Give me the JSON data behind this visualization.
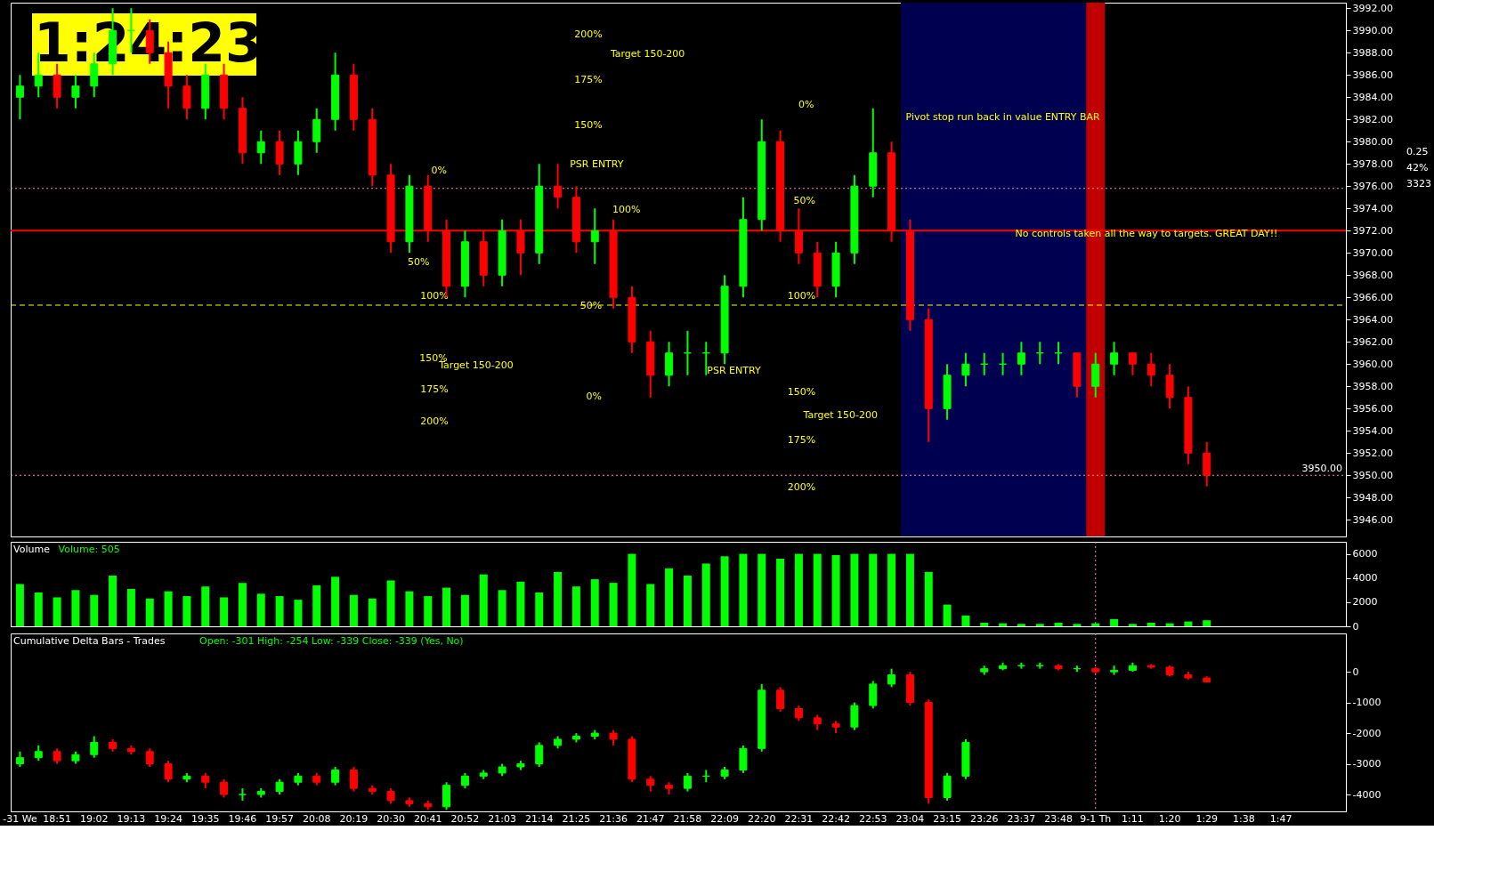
{
  "chart_data": [
    {
      "type": "candlestick",
      "tick_labels": "y",
      "grid": false,
      "categories": [
        "-31 We",
        null,
        "18:51",
        null,
        "19:02",
        null,
        "19:13",
        null,
        "19:24",
        null,
        "19:35",
        null,
        "19:46",
        null,
        "19:57",
        null,
        "20:08",
        null,
        "20:19",
        null,
        "20:30",
        null,
        "20:41",
        null,
        "20:52",
        null,
        "21:03",
        null,
        "21:14",
        null,
        "21:25",
        null,
        "21:36",
        null,
        "21:47",
        null,
        "21:58",
        null,
        "22:09",
        null,
        "22:20",
        null,
        "22:31",
        null,
        "22:42",
        null,
        "22:53",
        null,
        "23:04",
        null,
        "23:15",
        null,
        "23:26",
        null,
        "23:37",
        null,
        "23:48",
        null,
        "9-1 Th",
        null,
        "1:11",
        null,
        "1:20",
        null,
        "1:29",
        null,
        "1:38",
        null,
        "1:47",
        null,
        null,
        null
      ],
      "ohlc": [
        [
          3984,
          3986,
          3982,
          3985
        ],
        [
          3985,
          3988,
          3984,
          3986
        ],
        [
          3986,
          3987,
          3983,
          3984
        ],
        [
          3984,
          3986,
          3983,
          3985
        ],
        [
          3985,
          3988,
          3984,
          3987
        ],
        [
          3987,
          3992,
          3986,
          3990
        ],
        [
          3990,
          3992,
          3988,
          3990
        ],
        [
          3990,
          3991,
          3987,
          3988
        ],
        [
          3988,
          3989,
          3983,
          3985
        ],
        [
          3985,
          3986,
          3982,
          3983
        ],
        [
          3983,
          3987,
          3982,
          3986
        ],
        [
          3986,
          3987,
          3982,
          3983
        ],
        [
          3983,
          3984,
          3978,
          3979
        ],
        [
          3979,
          3981,
          3978,
          3980
        ],
        [
          3980,
          3981,
          3977,
          3978
        ],
        [
          3978,
          3981,
          3977,
          3980
        ],
        [
          3980,
          3983,
          3979,
          3982
        ],
        [
          3982,
          3988,
          3981,
          3986
        ],
        [
          3986,
          3987,
          3981,
          3982
        ],
        [
          3982,
          3983,
          3976,
          3977
        ],
        [
          3977,
          3978,
          3970,
          3971
        ],
        [
          3971,
          3977,
          3970,
          3976
        ],
        [
          3976,
          3977,
          3971,
          3972
        ],
        [
          3972,
          3973,
          3966,
          3967
        ],
        [
          3967,
          3972,
          3966,
          3971
        ],
        [
          3971,
          3972,
          3967,
          3968
        ],
        [
          3968,
          3973,
          3967,
          3972
        ],
        [
          3972,
          3973,
          3968,
          3970
        ],
        [
          3970,
          3978,
          3969,
          3976
        ],
        [
          3976,
          3978,
          3974,
          3975
        ],
        [
          3975,
          3976,
          3970,
          3971
        ],
        [
          3971,
          3974,
          3969,
          3972
        ],
        [
          3972,
          3973,
          3965,
          3966
        ],
        [
          3966,
          3967,
          3961,
          3962
        ],
        [
          3962,
          3963,
          3957,
          3959
        ],
        [
          3959,
          3962,
          3958,
          3961
        ],
        [
          3961,
          3963,
          3959,
          3961
        ],
        [
          3961,
          3962,
          3959,
          3961
        ],
        [
          3961,
          3968,
          3960,
          3967
        ],
        [
          3967,
          3975,
          3966,
          3973
        ],
        [
          3973,
          3982,
          3972,
          3980
        ],
        [
          3980,
          3981,
          3971,
          3972
        ],
        [
          3972,
          3974,
          3969,
          3970
        ],
        [
          3970,
          3971,
          3966,
          3967
        ],
        [
          3967,
          3971,
          3966,
          3970
        ],
        [
          3970,
          3977,
          3969,
          3976
        ],
        [
          3976,
          3983,
          3975,
          3979
        ],
        [
          3979,
          3980,
          3971,
          3972
        ],
        [
          3972,
          3973,
          3963,
          3964
        ],
        [
          3964,
          3965,
          3953,
          3956
        ],
        [
          3956,
          3960,
          3955,
          3959
        ],
        [
          3959,
          3961,
          3958,
          3960
        ],
        [
          3960,
          3961,
          3959,
          3960
        ],
        [
          3960,
          3961,
          3959,
          3960
        ],
        [
          3960,
          3962,
          3959,
          3961
        ],
        [
          3961,
          3962,
          3960,
          3961
        ],
        [
          3961,
          3962,
          3960,
          3961
        ],
        [
          3961,
          3961,
          3957,
          3958
        ],
        [
          3958,
          3961,
          3957,
          3960
        ],
        [
          3960,
          3962,
          3959,
          3961
        ],
        [
          3961,
          3961,
          3959,
          3960
        ],
        [
          3960,
          3961,
          3958,
          3959
        ],
        [
          3959,
          3960,
          3956,
          3957
        ],
        [
          3957,
          3958,
          3951,
          3952
        ],
        [
          3952,
          3953,
          3949,
          3950
        ],
        null,
        null,
        null,
        null,
        null,
        null,
        null
      ],
      "colors": [
        "#00ff00",
        "#00ff00",
        "#ff0000",
        "#00ff00",
        "#00ff00",
        "#00ff00",
        "#00ff00",
        "#ff0000",
        "#ff0000",
        "#ff0000",
        "#00ff00",
        "#ff0000",
        "#ff0000",
        "#00ff00",
        "#ff0000",
        "#00ff00",
        "#00ff00",
        "#00ff00",
        "#ff0000",
        "#ff0000",
        "#ff0000",
        "#00ff00",
        "#ff0000",
        "#ff0000",
        "#00ff00",
        "#ff0000",
        "#00ff00",
        "#ff0000",
        "#00ff00",
        "#ff0000",
        "#ff0000",
        "#00ff00",
        "#ff0000",
        "#ff0000",
        "#ff0000",
        "#00ff00",
        "#00ff00",
        "#00ff00",
        "#00ff00",
        "#00ff00",
        "#00ff00",
        "#ff0000",
        "#ff0000",
        "#ff0000",
        "#00ff00",
        "#00ff00",
        "#00ff00",
        "#ff0000",
        "#ff0000",
        "#ff0000",
        "#00ff00",
        "#00ff00",
        "#00ff00",
        "#00ff00",
        "#00ff00",
        "#00ff00",
        "#00ff00",
        "#ff0000",
        "#00ff00",
        "#00ff00",
        "#ff0000",
        "#ff0000",
        "#ff0000",
        "#ff0000",
        "#ff0000",
        null,
        null,
        null,
        null,
        null,
        null,
        null
      ],
      "ylim": [
        3944.5,
        3992.5
      ],
      "yticks": [
        {
          "value": 3946,
          "label": "3946.00"
        },
        {
          "value": 3948,
          "label": "3948.00"
        },
        {
          "value": 3950,
          "label": "3950.00"
        },
        {
          "value": 3952,
          "label": "3952.00"
        },
        {
          "value": 3954,
          "label": "3954.00"
        },
        {
          "value": 3956,
          "label": "3956.00"
        },
        {
          "value": 3958,
          "label": "3958.00"
        },
        {
          "value": 3960,
          "label": "3960.00"
        },
        {
          "value": 3962,
          "label": "3962.00"
        },
        {
          "value": 3964,
          "label": "3964.00"
        },
        {
          "value": 3966,
          "label": "3966.00"
        },
        {
          "value": 3968,
          "label": "3968.00"
        },
        {
          "value": 3970,
          "label": "3970.00"
        },
        {
          "value": 3972,
          "label": "3972.00"
        },
        {
          "value": 3974,
          "label": "3974.00"
        },
        {
          "value": 3976,
          "label": "3976.00"
        },
        {
          "value": 3978,
          "label": "3978.00"
        },
        {
          "value": 3980,
          "label": "3980.00"
        },
        {
          "value": 3982,
          "label": "3982.00"
        },
        {
          "value": 3984,
          "label": "3984.00"
        },
        {
          "value": 3986,
          "label": "3986.00"
        },
        {
          "value": 3988,
          "label": "3988.00"
        },
        {
          "value": 3990,
          "label": "3990.00"
        },
        {
          "value": 3992,
          "label": "3992.00"
        }
      ],
      "bands": [
        {
          "axis": "x",
          "from": "23:04",
          "to": "9-1 Th",
          "color": "#000050"
        },
        {
          "axis": "x",
          "from": "9-1 Th",
          "to": "9-1 Th",
          "color": "#c00000"
        }
      ],
      "ref_lines": [
        {
          "axis": "y",
          "value": 3975.8,
          "color": "#ff80c0",
          "line_style": "dotted"
        },
        {
          "axis": "y",
          "value": 3950.0,
          "label": "3950.00",
          "color": "#ff80c0",
          "line_style": "dotted"
        },
        {
          "axis": "y",
          "value": 3972.0,
          "color": "#ff0000",
          "line_style": "solid"
        },
        {
          "axis": "y",
          "value": 3965.3,
          "color": "#ffff00",
          "line_style": "dashed"
        }
      ],
      "annotations": [
        "1:24:23",
        "0.25",
        "42%",
        "3323",
        "200%",
        "Target 150-200",
        "175%",
        "150%",
        "0%",
        "50%",
        "100%",
        "150%",
        "Target 150-200",
        "175%",
        "200%",
        "PSR ENTRY",
        "100%",
        "50%",
        "0%",
        "PSR ENTRY",
        "0%",
        "50%",
        "100%",
        "150%",
        "Target 150-200",
        "175%",
        "200%",
        "Pivot stop run back in value ENTRY BAR",
        "No controls taken all the way to targets. GREAT DAY!!"
      ]
    },
    {
      "type": "bar",
      "title": "Volume",
      "subtitle": "Volume: 505",
      "tick_labels": "y",
      "grid": false,
      "color": "#00ff00",
      "categories": [
        "-31 We",
        null,
        "18:51",
        null,
        "19:02",
        null,
        "19:13",
        null,
        "19:24",
        null,
        "19:35",
        null,
        "19:46",
        null,
        "19:57",
        null,
        "20:08",
        null,
        "20:19",
        null,
        "20:30",
        null,
        "20:41",
        null,
        "20:52",
        null,
        "21:03",
        null,
        "21:14",
        null,
        "21:25",
        null,
        "21:36",
        null,
        "21:47",
        null,
        "21:58",
        null,
        "22:09",
        null,
        "22:20",
        null,
        "22:31",
        null,
        "22:42",
        null,
        "22:53",
        null,
        "23:04",
        null,
        "23:15",
        null,
        "23:26",
        null,
        "23:37",
        null,
        "23:48",
        null,
        "9-1 Th",
        null,
        "1:11",
        null,
        "1:20",
        null,
        "1:29",
        null,
        "1:38",
        null,
        "1:47",
        null,
        null,
        null
      ],
      "values": [
        3500,
        2800,
        2400,
        3000,
        2600,
        4200,
        3100,
        2300,
        2900,
        2500,
        3300,
        2400,
        3600,
        2700,
        2500,
        2200,
        3400,
        4100,
        2600,
        2300,
        3800,
        2900,
        2500,
        3200,
        2600,
        4300,
        3000,
        3700,
        2800,
        4500,
        3300,
        3900,
        3600,
        6000,
        3500,
        4800,
        4200,
        5200,
        5800,
        6000,
        6000,
        5600,
        6000,
        6000,
        5900,
        6000,
        6000,
        6000,
        6000,
        4500,
        1800,
        900,
        300,
        250,
        200,
        200,
        300,
        200,
        250,
        600,
        200,
        300,
        250,
        400,
        500,
        null,
        null,
        null,
        null,
        null,
        null,
        null
      ],
      "ylim": [
        0,
        7000
      ],
      "yticks": [
        0,
        2000,
        4000,
        6000
      ],
      "ref_lines": [
        {
          "axis": "x",
          "value": "9-1 Th",
          "color": "#ff80c0",
          "line_style": "dotted"
        }
      ]
    },
    {
      "type": "candlestick",
      "title": "Cumulative Delta Bars - Trades",
      "subtitle": "Open: -301  High: -254  Low: -339  Close: -339  (Yes, No)",
      "grid": false,
      "categories": [
        "-31 We",
        null,
        "18:51",
        null,
        "19:02",
        null,
        "19:13",
        null,
        "19:24",
        null,
        "19:35",
        null,
        "19:46",
        null,
        "19:57",
        null,
        "20:08",
        null,
        "20:19",
        null,
        "20:30",
        null,
        "20:41",
        null,
        "20:52",
        null,
        "21:03",
        null,
        "21:14",
        null,
        "21:25",
        null,
        "21:36",
        null,
        "21:47",
        null,
        "21:58",
        null,
        "22:09",
        null,
        "22:20",
        null,
        "22:31",
        null,
        "22:42",
        null,
        "22:53",
        null,
        "23:04",
        null,
        "23:15",
        null,
        "23:26",
        null,
        "23:37",
        null,
        "23:48",
        null,
        "9-1 Th",
        null,
        "1:11",
        null,
        "1:20",
        null,
        "1:29",
        null,
        "1:38",
        null,
        "1:47",
        null,
        null,
        null
      ],
      "ohlc": [
        [
          -3000,
          -2600,
          -3100,
          -2800
        ],
        [
          -2800,
          -2400,
          -2900,
          -2600
        ],
        [
          -2600,
          -2500,
          -3000,
          -2900
        ],
        [
          -2900,
          -2600,
          -3000,
          -2700
        ],
        [
          -2700,
          -2100,
          -2800,
          -2300
        ],
        [
          -2300,
          -2200,
          -2600,
          -2500
        ],
        [
          -2500,
          -2400,
          -2700,
          -2600
        ],
        [
          -2600,
          -2500,
          -3100,
          -3000
        ],
        [
          -3000,
          -2900,
          -3600,
          -3500
        ],
        [
          -3500,
          -3300,
          -3600,
          -3400
        ],
        [
          -3400,
          -3300,
          -3800,
          -3600
        ],
        [
          -3600,
          -3500,
          -4100,
          -4000
        ],
        [
          -4000,
          -3800,
          -4200,
          -4000
        ],
        [
          -4000,
          -3800,
          -4100,
          -3900
        ],
        [
          -3900,
          -3500,
          -4000,
          -3600
        ],
        [
          -3600,
          -3300,
          -3700,
          -3400
        ],
        [
          -3400,
          -3300,
          -3700,
          -3600
        ],
        [
          -3600,
          -3100,
          -3700,
          -3200
        ],
        [
          -3200,
          -3100,
          -3900,
          -3800
        ],
        [
          -3800,
          -3700,
          -4000,
          -3900
        ],
        [
          -3900,
          -3800,
          -4300,
          -4200
        ],
        [
          -4200,
          -4100,
          -4400,
          -4300
        ],
        [
          -4300,
          -4200,
          -4500,
          -4400
        ],
        [
          -4400,
          -3600,
          -4500,
          -3700
        ],
        [
          -3700,
          -3300,
          -3800,
          -3400
        ],
        [
          -3400,
          -3200,
          -3500,
          -3300
        ],
        [
          -3300,
          -3000,
          -3400,
          -3100
        ],
        [
          -3100,
          -2900,
          -3200,
          -3000
        ],
        [
          -3000,
          -2300,
          -3100,
          -2400
        ],
        [
          -2400,
          -2100,
          -2500,
          -2200
        ],
        [
          -2200,
          -2000,
          -2300,
          -2100
        ],
        [
          -2100,
          -1900,
          -2200,
          -2000
        ],
        [
          -2000,
          -1900,
          -2400,
          -2200
        ],
        [
          -2200,
          -2100,
          -3600,
          -3500
        ],
        [
          -3500,
          -3400,
          -3900,
          -3700
        ],
        [
          -3700,
          -3600,
          -4000,
          -3800
        ],
        [
          -3800,
          -3300,
          -3900,
          -3400
        ],
        [
          -3400,
          -3200,
          -3600,
          -3400
        ],
        [
          -3400,
          -3100,
          -3500,
          -3200
        ],
        [
          -3200,
          -2400,
          -3300,
          -2500
        ],
        [
          -2500,
          -400,
          -2600,
          -600
        ],
        [
          -600,
          -500,
          -1300,
          -1200
        ],
        [
          -1200,
          -1100,
          -1600,
          -1500
        ],
        [
          -1500,
          -1400,
          -1900,
          -1700
        ],
        [
          -1700,
          -1600,
          -2000,
          -1800
        ],
        [
          -1800,
          -1000,
          -1900,
          -1100
        ],
        [
          -1100,
          -300,
          -1200,
          -400
        ],
        [
          -400,
          100,
          -500,
          -100
        ],
        [
          -100,
          0,
          -1100,
          -1000
        ],
        [
          -1000,
          -900,
          -4300,
          -4100
        ],
        [
          -4100,
          -3300,
          -4200,
          -3400
        ],
        [
          -3400,
          -2200,
          -3500,
          -2300
        ],
        [
          0,
          200,
          -100,
          100
        ],
        [
          100,
          300,
          50,
          200
        ],
        [
          200,
          300,
          100,
          200
        ],
        [
          200,
          300,
          100,
          200
        ],
        [
          200,
          250,
          50,
          100
        ],
        [
          100,
          200,
          0,
          100
        ],
        [
          100,
          150,
          -50,
          0
        ],
        [
          0,
          200,
          -100,
          50
        ],
        [
          50,
          300,
          0,
          200
        ],
        [
          200,
          250,
          100,
          150
        ],
        [
          150,
          200,
          -150,
          -100
        ],
        [
          -100,
          0,
          -250,
          -200
        ],
        [
          -200,
          -150,
          -340,
          -330
        ],
        null,
        null,
        null,
        null,
        null,
        null,
        null
      ],
      "colors": [
        "#00ff00",
        "#00ff00",
        "#ff0000",
        "#00ff00",
        "#00ff00",
        "#ff0000",
        "#ff0000",
        "#ff0000",
        "#ff0000",
        "#00ff00",
        "#ff0000",
        "#ff0000",
        "#00ff00",
        "#00ff00",
        "#00ff00",
        "#00ff00",
        "#ff0000",
        "#00ff00",
        "#ff0000",
        "#ff0000",
        "#ff0000",
        "#ff0000",
        "#ff0000",
        "#00ff00",
        "#00ff00",
        "#00ff00",
        "#00ff00",
        "#00ff00",
        "#00ff00",
        "#00ff00",
        "#00ff00",
        "#00ff00",
        "#ff0000",
        "#ff0000",
        "#ff0000",
        "#ff0000",
        "#00ff00",
        "#00ff00",
        "#00ff00",
        "#00ff00",
        "#00ff00",
        "#ff0000",
        "#ff0000",
        "#ff0000",
        "#ff0000",
        "#00ff00",
        "#00ff00",
        "#00ff00",
        "#ff0000",
        "#ff0000",
        "#00ff00",
        "#00ff00",
        "#00ff00",
        "#00ff00",
        "#00ff00",
        "#00ff00",
        "#ff0000",
        "#00ff00",
        "#ff0000",
        "#00ff00",
        "#00ff00",
        "#ff0000",
        "#ff0000",
        "#ff0000",
        "#ff0000",
        null,
        null,
        null,
        null,
        null,
        null,
        null
      ],
      "ylim": [
        -4550,
        1250
      ],
      "yticks": [
        0,
        -1000,
        -2000,
        -3000,
        -4000
      ],
      "ref_lines": [
        {
          "axis": "x",
          "value": "9-1 Th",
          "color": "#ff80c0",
          "line_style": "dotted"
        }
      ]
    }
  ]
}
